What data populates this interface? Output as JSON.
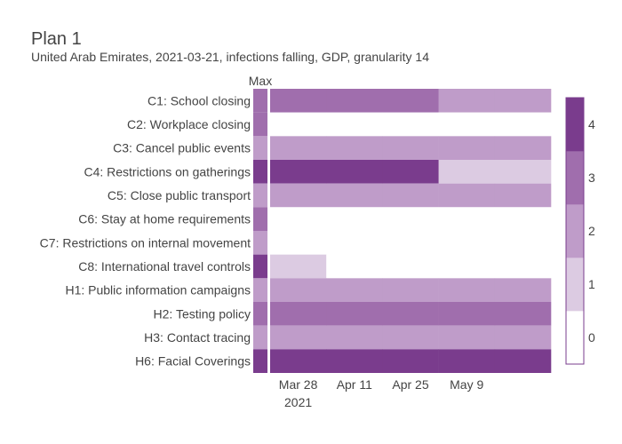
{
  "title": "Plan 1",
  "subtitle": "United Arab Emirates, 2021-03-21, infections falling, GDP, granularity 14",
  "colors": {
    "level_0": "#ffffff",
    "level_1": "#dccbe2",
    "level_2": "#bf9cc9",
    "level_3": "#a06ead",
    "level_4": "#7a3c8d",
    "colorbar_border": "#7a3c8d",
    "text": "#444444"
  },
  "chart_data": {
    "type": "heatmap",
    "max_column_label": "Max",
    "rows": [
      {
        "label": "C1: School closing",
        "max": 3,
        "values": [
          3,
          3,
          3,
          2,
          2
        ]
      },
      {
        "label": "C2: Workplace closing",
        "max": 3,
        "values": [
          0,
          0,
          0,
          0,
          0
        ]
      },
      {
        "label": "C3: Cancel public events",
        "max": 2,
        "values": [
          2,
          2,
          2,
          2,
          2
        ]
      },
      {
        "label": "C4: Restrictions on gatherings",
        "max": 4,
        "values": [
          4,
          4,
          4,
          1,
          1
        ]
      },
      {
        "label": "C5: Close public transport",
        "max": 2,
        "values": [
          2,
          2,
          2,
          2,
          2
        ]
      },
      {
        "label": "C6: Stay at home requirements",
        "max": 3,
        "values": [
          0,
          0,
          0,
          0,
          0
        ]
      },
      {
        "label": "C7: Restrictions on internal movement",
        "max": 2,
        "values": [
          0,
          0,
          0,
          0,
          0
        ]
      },
      {
        "label": "C8: International travel controls",
        "max": 4,
        "values": [
          1,
          0,
          0,
          0,
          0
        ]
      },
      {
        "label": "H1: Public information campaigns",
        "max": 2,
        "values": [
          2,
          2,
          2,
          2,
          2
        ]
      },
      {
        "label": "H2: Testing policy",
        "max": 3,
        "values": [
          3,
          3,
          3,
          3,
          3
        ]
      },
      {
        "label": "H3: Contact tracing",
        "max": 2,
        "values": [
          2,
          2,
          2,
          2,
          2
        ]
      },
      {
        "label": "H6: Facial Coverings",
        "max": 4,
        "values": [
          4,
          4,
          4,
          4,
          4
        ]
      }
    ],
    "period_starts": [
      "2021-03-21",
      "2021-04-04",
      "2021-04-18",
      "2021-05-02",
      "2021-05-16"
    ],
    "period_days": 14,
    "x_end": "2021-05-30",
    "x_ticks": [
      {
        "date": "2021-03-28",
        "label": "Mar 28",
        "sublabel": "2021"
      },
      {
        "date": "2021-04-11",
        "label": "Apr 11",
        "sublabel": ""
      },
      {
        "date": "2021-04-25",
        "label": "Apr 25",
        "sublabel": ""
      },
      {
        "date": "2021-05-09",
        "label": "May 9",
        "sublabel": ""
      }
    ],
    "colorbar": {
      "ticks": [
        0,
        1,
        2,
        3,
        4
      ],
      "range": [
        0,
        5
      ]
    }
  }
}
